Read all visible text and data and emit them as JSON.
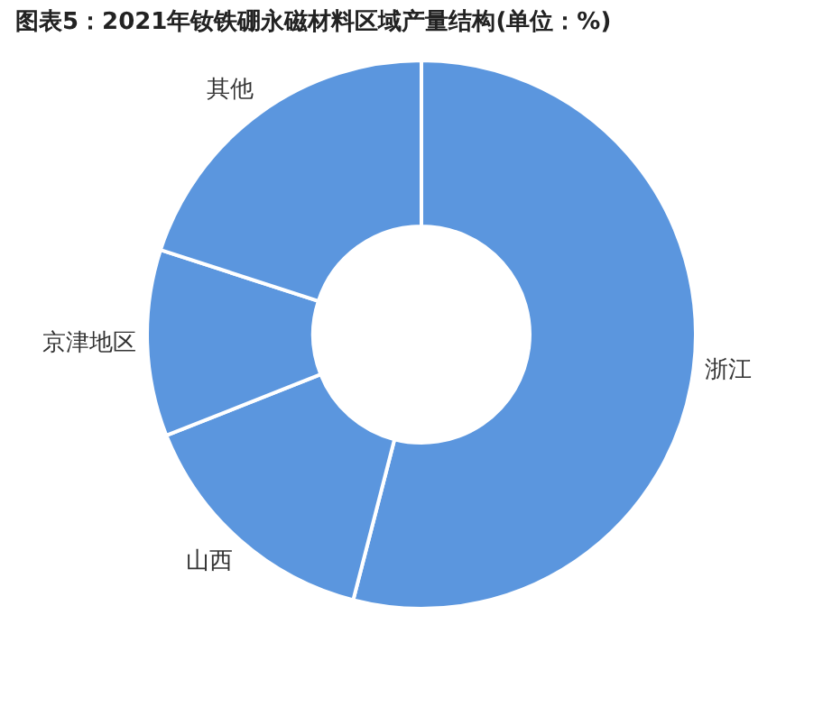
{
  "chart_data": {
    "type": "donut",
    "title": "图表5：2021年钕铁硼永磁材料区域产量结构(单位：%)",
    "categories": [
      "浙江",
      "山西",
      "京津地区",
      "其他"
    ],
    "values": [
      54,
      15,
      11,
      20
    ],
    "colors": [
      "#5b96de",
      "#5b96de",
      "#5b96de",
      "#5b96de"
    ]
  }
}
